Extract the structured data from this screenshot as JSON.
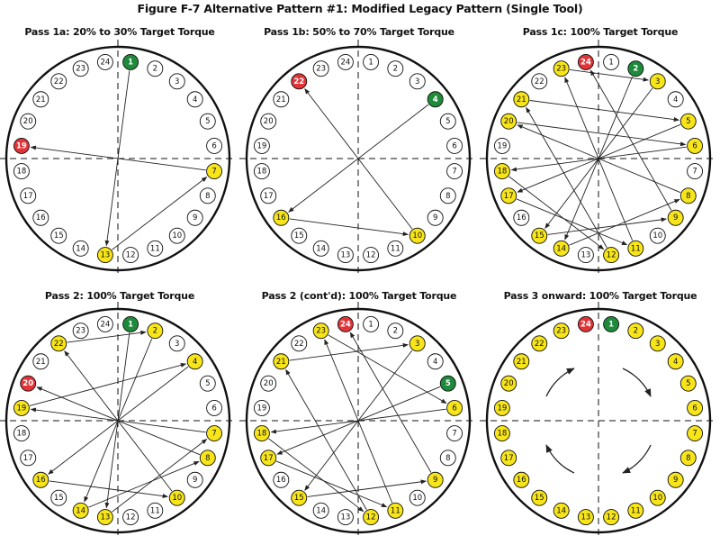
{
  "figure_title": "Figure F-7 Alternative Pattern #1: Modified Legacy Pattern (Single Tool)",
  "colors": {
    "red": "#e23437",
    "green": "#1f8a3b",
    "yellow": "#f7e51a",
    "white": "#ffffff",
    "line": "#222222"
  },
  "bolts": [
    "1",
    "2",
    "3",
    "4",
    "5",
    "6",
    "7",
    "8",
    "9",
    "10",
    "11",
    "12",
    "13",
    "14",
    "15",
    "16",
    "17",
    "18",
    "19",
    "20",
    "21",
    "22",
    "23",
    "24"
  ],
  "panels": [
    {
      "title": "Pass 1a: 20% to 30% Target Torque",
      "highlights": {
        "1": "green",
        "19": "red",
        "7": "yellow",
        "13": "yellow"
      },
      "moves": [
        [
          1,
          13
        ],
        [
          13,
          7
        ],
        [
          7,
          19
        ]
      ]
    },
    {
      "title": "Pass 1b: 50% to 70% Target Torque",
      "highlights": {
        "4": "green",
        "22": "red",
        "16": "yellow",
        "10": "yellow"
      },
      "moves": [
        [
          4,
          16
        ],
        [
          16,
          10
        ],
        [
          10,
          22
        ]
      ]
    },
    {
      "title": "Pass 1c: 100% Target Torque",
      "highlights": {
        "2": "green",
        "24": "red",
        "3": "yellow",
        "5": "yellow",
        "6": "yellow",
        "8": "yellow",
        "9": "yellow",
        "11": "yellow",
        "12": "yellow",
        "14": "yellow",
        "15": "yellow",
        "17": "yellow",
        "18": "yellow",
        "20": "yellow",
        "21": "yellow",
        "23": "yellow"
      },
      "moves": [
        [
          2,
          14
        ],
        [
          14,
          8
        ],
        [
          8,
          20
        ],
        [
          20,
          6
        ],
        [
          6,
          18
        ],
        [
          18,
          12
        ],
        [
          12,
          21
        ],
        [
          21,
          5
        ],
        [
          5,
          17
        ],
        [
          17,
          11
        ],
        [
          11,
          23
        ],
        [
          23,
          3
        ],
        [
          3,
          15
        ],
        [
          15,
          9
        ],
        [
          9,
          24
        ]
      ]
    },
    {
      "title": "Pass 2: 100% Target Torque",
      "highlights": {
        "1": "green",
        "20": "red",
        "2": "yellow",
        "4": "yellow",
        "7": "yellow",
        "8": "yellow",
        "10": "yellow",
        "13": "yellow",
        "14": "yellow",
        "16": "yellow",
        "19": "yellow",
        "22": "yellow"
      },
      "moves": [
        [
          1,
          13
        ],
        [
          13,
          7
        ],
        [
          7,
          19
        ],
        [
          19,
          4
        ],
        [
          4,
          16
        ],
        [
          16,
          10
        ],
        [
          10,
          22
        ],
        [
          22,
          2
        ],
        [
          2,
          14
        ],
        [
          14,
          8
        ],
        [
          8,
          20
        ]
      ]
    },
    {
      "title": "Pass 2 (cont'd): 100% Target Torque",
      "highlights": {
        "5": "green",
        "24": "red",
        "3": "yellow",
        "6": "yellow",
        "9": "yellow",
        "11": "yellow",
        "12": "yellow",
        "15": "yellow",
        "17": "yellow",
        "18": "yellow",
        "21": "yellow",
        "23": "yellow"
      },
      "moves": [
        [
          5,
          17
        ],
        [
          17,
          11
        ],
        [
          11,
          23
        ],
        [
          23,
          6
        ],
        [
          6,
          18
        ],
        [
          18,
          12
        ],
        [
          12,
          21
        ],
        [
          21,
          3
        ],
        [
          3,
          15
        ],
        [
          15,
          9
        ],
        [
          9,
          24
        ]
      ]
    },
    {
      "title": "Pass 3 onward: 100% Target Torque",
      "highlights": {
        "1": "green",
        "24": "red",
        "2": "yellow",
        "3": "yellow",
        "4": "yellow",
        "5": "yellow",
        "6": "yellow",
        "7": "yellow",
        "8": "yellow",
        "9": "yellow",
        "10": "yellow",
        "11": "yellow",
        "12": "yellow",
        "13": "yellow",
        "14": "yellow",
        "15": "yellow",
        "16": "yellow",
        "17": "yellow",
        "18": "yellow",
        "19": "yellow",
        "20": "yellow",
        "21": "yellow",
        "22": "yellow",
        "23": "yellow"
      },
      "moves": [],
      "rotation": "clockwise"
    }
  ]
}
